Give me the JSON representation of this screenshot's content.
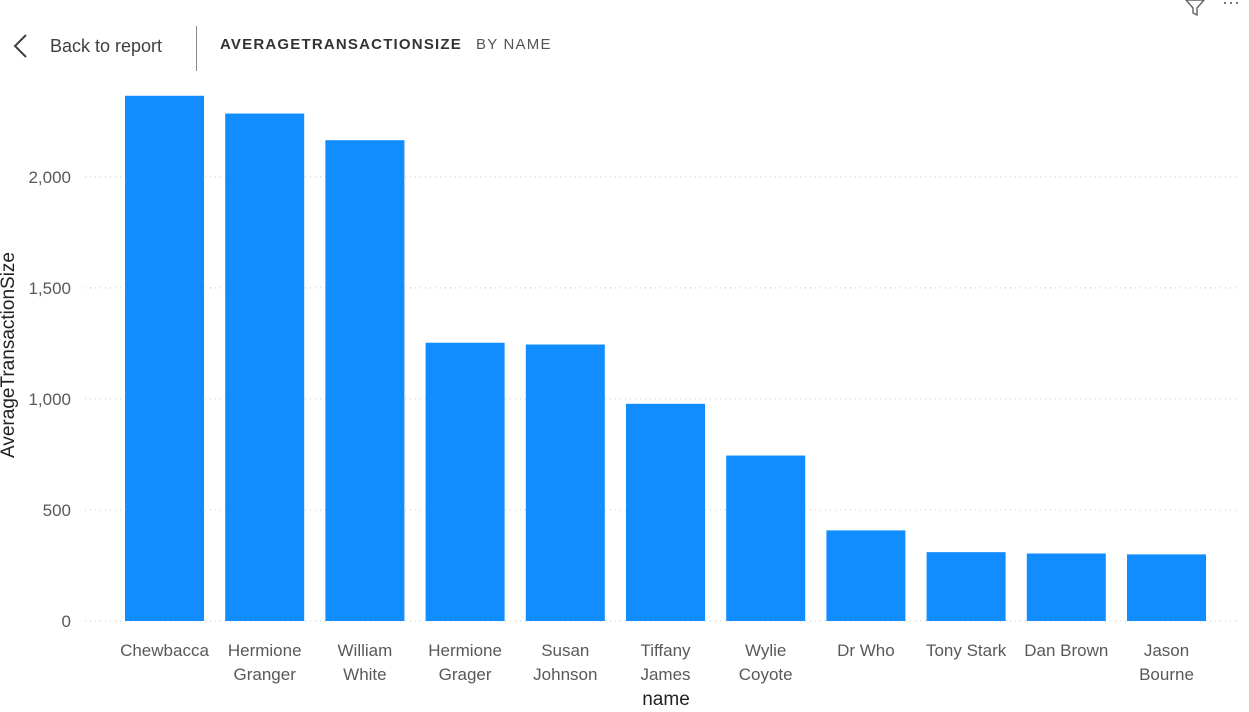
{
  "header": {
    "back_label": "Back to report",
    "title_main": "AVERAGETRANSACTIONSIZE",
    "title_sub": "BY NAME",
    "icons": {
      "back": "chevron-left-icon",
      "filter": "filter-icon",
      "more": "more-options-icon"
    }
  },
  "colors": {
    "bar": "#118DFF",
    "gridline": "#C8C8C8",
    "text": "#595959"
  },
  "chart_data": {
    "type": "bar",
    "categories": [
      [
        "Chewbacca"
      ],
      [
        "Hermione",
        "Granger"
      ],
      [
        "William",
        "White"
      ],
      [
        "Hermione",
        "Grager"
      ],
      [
        "Susan",
        "Johnson"
      ],
      [
        "Tiffany",
        "James"
      ],
      [
        "Wylie",
        "Coyote"
      ],
      [
        "Dr Who"
      ],
      [
        "Tony Stark"
      ],
      [
        "Dan Brown"
      ],
      [
        "Jason",
        "Bourne"
      ]
    ],
    "values": [
      2365,
      2285,
      2165,
      1253,
      1245,
      978,
      745,
      408,
      310,
      304,
      300
    ],
    "xlabel": "name",
    "ylabel": "AverageTransactionSize",
    "ylim": [
      0,
      2400
    ],
    "yticks": [
      0,
      500,
      1000,
      1500,
      2000
    ],
    "ytick_labels": [
      "0",
      "500",
      "1,000",
      "1,500",
      "2,000"
    ],
    "grid": true,
    "legend": "none"
  }
}
